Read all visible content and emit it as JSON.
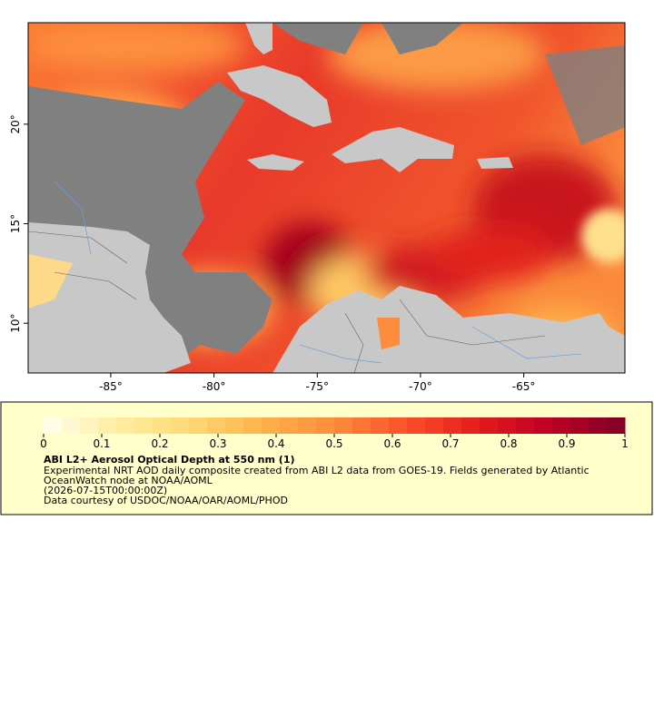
{
  "map": {
    "xlim": [
      -89,
      -60.1
    ],
    "ylim": [
      7.5,
      25.1
    ],
    "xticks": [
      {
        "value": -85,
        "label": "-85°"
      },
      {
        "value": -80,
        "label": "-80°"
      },
      {
        "value": -75,
        "label": "-75°"
      },
      {
        "value": -70,
        "label": "-70°"
      },
      {
        "value": -65,
        "label": "-65°"
      }
    ],
    "yticks": [
      {
        "value": 10,
        "label": "10°"
      },
      {
        "value": 15,
        "label": "15°"
      },
      {
        "value": 20,
        "label": "20°"
      }
    ]
  },
  "colorbar": {
    "lim": [
      0,
      1
    ],
    "ticks": [
      0,
      0.1,
      0.2,
      0.3,
      0.4,
      0.5,
      0.6,
      0.7,
      0.8,
      0.9,
      1
    ],
    "colors": [
      "#fffff0",
      "#ffeda0",
      "#fed976",
      "#feb24c",
      "#fd8d3c",
      "#fc4e2a",
      "#e31a1c",
      "#bd0026",
      "#800026"
    ]
  },
  "legend": {
    "title": "ABI L2+ Aerosol Optical Depth at 550 nm (1)",
    "lines": [
      "Experimental NRT AOD daily composite created from ABI L2 data from GOES-19. Fields generated by Atlantic",
      "OceanWatch node at NOAA/AOML",
      "(2026-07-15T00:00:00Z)",
      "Data courtesy of USDOC/NOAA/OAR/AOML/PHOD"
    ]
  }
}
